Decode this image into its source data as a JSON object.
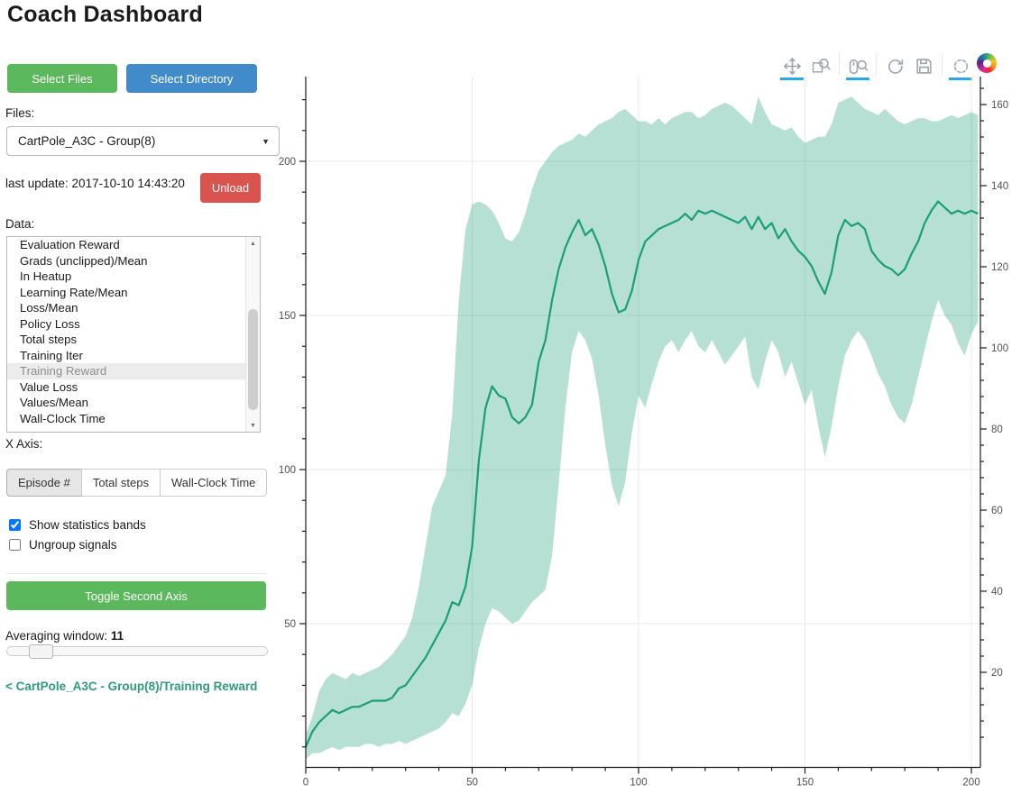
{
  "page": {
    "title": "Coach Dashboard"
  },
  "sidebar": {
    "select_files_label": "Select Files",
    "select_directory_label": "Select Directory",
    "files_label": "Files:",
    "files_selected": "CartPole_A3C - Group(8)",
    "last_update": "last update: 2017-10-10 14:43:20",
    "unload_label": "Unload",
    "data_label": "Data:",
    "data_items": [
      "Evaluation Reward",
      "Grads (unclipped)/Mean",
      "In Heatup",
      "Learning Rate/Mean",
      "Loss/Mean",
      "Policy Loss",
      "Total steps",
      "Training Iter",
      "Training Reward",
      "Value Loss",
      "Values/Mean",
      "Wall-Clock Time"
    ],
    "data_selected": "Training Reward",
    "x_axis_label": "X Axis:",
    "x_axis_options": [
      "Episode #",
      "Total steps",
      "Wall-Clock Time"
    ],
    "x_axis_selected": "Episode #",
    "checkbox_bands_label": "Show statistics bands",
    "checkbox_bands_checked": true,
    "checkbox_ungroup_label": "Ungroup signals",
    "checkbox_ungroup_checked": false,
    "toggle_second_axis_label": "Toggle Second Axis",
    "averaging_window_label": "Averaging window: ",
    "averaging_window_value": "11",
    "breadcrumb_link": "< CartPole_A3C - Group(8)/Training Reward"
  },
  "toolbar": {
    "icons": [
      {
        "name": "pan-tool-icon",
        "type": "pan",
        "active": true
      },
      {
        "name": "box-zoom-tool-icon",
        "type": "boxzoom",
        "active": false
      },
      {
        "name": "divider",
        "type": "divider",
        "active": false
      },
      {
        "name": "wheel-zoom-tool-icon",
        "type": "wheelzoom",
        "active": true
      },
      {
        "name": "divider",
        "type": "divider",
        "active": false
      },
      {
        "name": "reset-tool-icon",
        "type": "reset",
        "active": false
      },
      {
        "name": "save-tool-icon",
        "type": "save",
        "active": false
      },
      {
        "name": "divider",
        "type": "divider",
        "active": false
      },
      {
        "name": "hover-tool-icon",
        "type": "hover",
        "active": true
      },
      {
        "name": "bokeh-logo",
        "type": "logo",
        "active": false
      }
    ]
  },
  "chart_data": {
    "type": "line",
    "title": "",
    "xlabel": "",
    "ylabel": "",
    "series_name": "CartPole_A3C - Group(8)/Training Reward",
    "legend": "none",
    "grid": true,
    "x_range": [
      0,
      203
    ],
    "left_y_range": [
      0,
      228
    ],
    "right_y_range": [
      -3,
      167
    ],
    "xticks": [
      0,
      50,
      100,
      150,
      200
    ],
    "left_yticks": [
      50,
      100,
      150,
      200
    ],
    "right_yticks": [
      20,
      40,
      60,
      80,
      100,
      120,
      140,
      160
    ],
    "x": [
      0,
      2,
      4,
      6,
      8,
      10,
      12,
      14,
      16,
      18,
      20,
      22,
      24,
      26,
      28,
      30,
      32,
      34,
      36,
      38,
      40,
      42,
      44,
      46,
      48,
      50,
      52,
      54,
      56,
      58,
      60,
      62,
      64,
      66,
      68,
      70,
      72,
      74,
      76,
      78,
      80,
      82,
      84,
      86,
      88,
      90,
      92,
      94,
      96,
      98,
      100,
      102,
      104,
      106,
      108,
      110,
      112,
      114,
      116,
      118,
      120,
      122,
      124,
      126,
      128,
      130,
      132,
      134,
      136,
      138,
      140,
      142,
      144,
      146,
      148,
      150,
      152,
      154,
      156,
      158,
      160,
      162,
      164,
      166,
      168,
      170,
      172,
      174,
      176,
      178,
      180,
      182,
      184,
      186,
      188,
      190,
      192,
      194,
      196,
      198,
      200,
      202
    ],
    "series": [
      {
        "name": "Training Reward (mean)",
        "values": [
          10,
          15,
          18,
          20,
          22,
          21,
          22,
          23,
          23,
          24,
          25,
          25,
          25,
          26,
          29,
          30,
          33,
          36,
          39,
          43,
          47,
          51,
          57,
          56,
          62,
          75,
          103,
          120,
          127,
          124,
          123,
          117,
          115,
          117,
          121,
          135,
          142,
          155,
          165,
          172,
          177,
          181,
          176,
          178,
          173,
          166,
          157,
          151,
          152,
          158,
          168,
          174,
          176,
          178,
          179,
          180,
          181,
          183,
          181,
          184,
          183,
          184,
          183,
          182,
          181,
          180,
          182,
          178,
          182,
          178,
          180,
          175,
          178,
          174,
          171,
          169,
          166,
          161,
          157,
          164,
          176,
          181,
          179,
          180,
          178,
          171,
          168,
          166,
          165,
          163,
          165,
          170,
          174,
          180,
          184,
          187,
          185,
          183,
          184,
          183,
          184,
          183
        ]
      },
      {
        "name": "band lower (mean - std)",
        "values": [
          6,
          8,
          8,
          9,
          10,
          9,
          10,
          10,
          10,
          11,
          11,
          10,
          11,
          11,
          12,
          11,
          12,
          13,
          14,
          15,
          16,
          18,
          21,
          20,
          24,
          30,
          42,
          50,
          55,
          54,
          52,
          50,
          51,
          54,
          57,
          59,
          61,
          72,
          95,
          120,
          138,
          145,
          142,
          136,
          124,
          108,
          95,
          88,
          96,
          112,
          124,
          120,
          128,
          135,
          140,
          142,
          138,
          142,
          145,
          140,
          138,
          142,
          138,
          134,
          137,
          140,
          143,
          130,
          126,
          135,
          142,
          138,
          130,
          135,
          128,
          121,
          126,
          114,
          104,
          114,
          127,
          137,
          142,
          145,
          142,
          137,
          131,
          127,
          121,
          117,
          115,
          121,
          130,
          139,
          148,
          155,
          150,
          147,
          141,
          137,
          144,
          148
        ]
      },
      {
        "name": "band upper (mean + std)",
        "values": [
          14,
          20,
          28,
          32,
          34,
          33,
          32,
          34,
          33,
          34,
          35,
          36,
          38,
          40,
          43,
          46,
          52,
          62,
          75,
          88,
          93,
          98,
          118,
          155,
          178,
          186,
          187,
          186,
          184,
          180,
          175,
          174,
          177,
          183,
          191,
          197,
          200,
          203,
          205,
          206,
          207,
          209,
          208,
          210,
          212,
          213,
          214,
          216,
          217,
          215,
          213,
          213,
          212,
          214,
          212,
          214,
          215,
          216,
          216,
          214,
          215,
          217,
          218,
          219,
          218,
          216,
          214,
          212,
          221,
          216,
          212,
          211,
          210,
          211,
          208,
          206,
          207,
          208,
          208,
          212,
          219,
          220,
          221,
          219,
          217,
          216,
          215,
          217,
          215,
          213,
          212,
          213,
          214,
          214,
          213,
          213,
          214,
          215,
          214,
          215,
          216,
          215
        ]
      }
    ],
    "colors": {
      "line": "#1b9e77",
      "band": "rgba(27,158,119,0.32)",
      "grid": "#e8e8e8",
      "axis": "#1c1c1c",
      "tick_label": "#515151"
    }
  }
}
